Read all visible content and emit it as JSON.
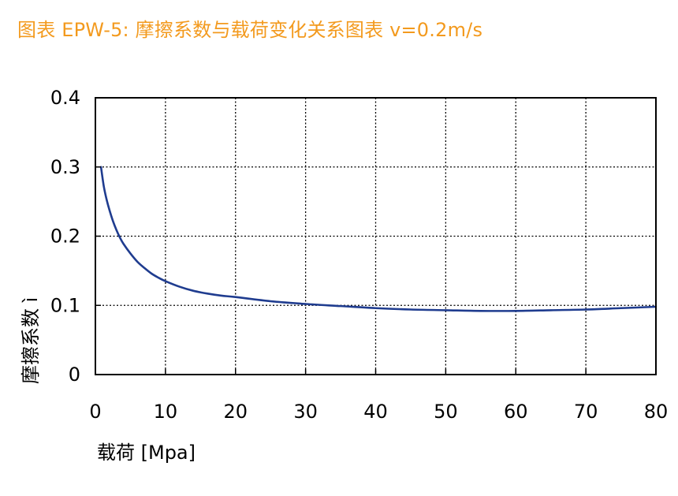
{
  "page": {
    "title": "图表 EPW-5: 摩擦系数与载荷变化关系图表 v=0.2m/s",
    "title_color": "#F39A1E"
  },
  "chart_data": {
    "type": "line",
    "title": "图表 EPW-5: 摩擦系数与载荷变化关系图表 v=0.2m/s",
    "xlabel": "载荷 [Mpa]",
    "ylabel": "摩擦系数 ì",
    "xlim": [
      0,
      80
    ],
    "ylim": [
      0,
      0.4
    ],
    "xticks": [
      0,
      10,
      20,
      30,
      40,
      50,
      60,
      70,
      80
    ],
    "yticks": [
      0,
      0.1,
      0.2,
      0.3,
      0.4
    ],
    "xtick_labels": [
      "0",
      "10",
      "20",
      "30",
      "40",
      "50",
      "60",
      "70",
      "80"
    ],
    "ytick_labels": [
      "0",
      "0.1",
      "0.2",
      "0.3",
      "0.4"
    ],
    "grid": true,
    "series": [
      {
        "color": "#1F3C8F",
        "x": [
          0.8,
          1.2,
          1.6,
          2.0,
          2.5,
          3.0,
          3.5,
          4.0,
          5.0,
          6.0,
          7.0,
          8.0,
          9.0,
          10,
          12,
          14,
          16,
          18,
          20,
          25,
          30,
          35,
          40,
          45,
          50,
          55,
          60,
          65,
          70,
          75,
          80
        ],
        "y": [
          0.3,
          0.272,
          0.253,
          0.238,
          0.222,
          0.209,
          0.198,
          0.189,
          0.175,
          0.163,
          0.154,
          0.146,
          0.14,
          0.135,
          0.127,
          0.121,
          0.117,
          0.114,
          0.112,
          0.106,
          0.102,
          0.099,
          0.096,
          0.094,
          0.093,
          0.092,
          0.092,
          0.093,
          0.094,
          0.096,
          0.098
        ]
      }
    ]
  }
}
